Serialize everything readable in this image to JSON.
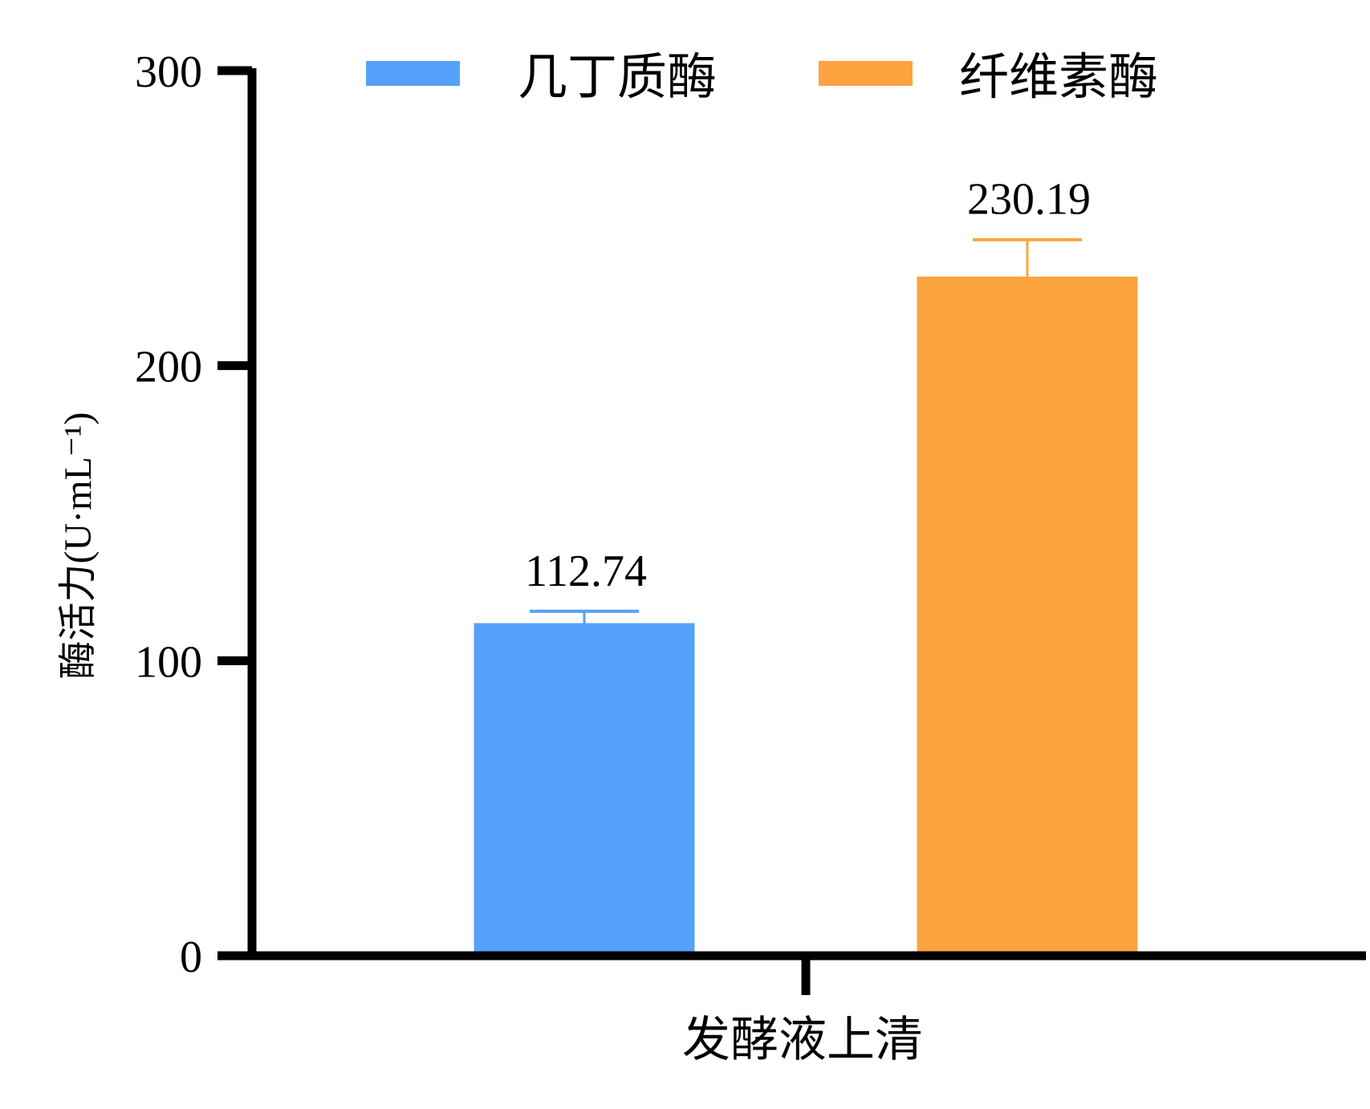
{
  "chart_data": {
    "type": "bar",
    "title": "",
    "xlabel": "",
    "ylabel": "酶活力(U·mL⁻¹)",
    "ylim": [
      0,
      300
    ],
    "yticks": [
      0,
      100,
      200,
      300
    ],
    "categories": [
      "发酵液上清"
    ],
    "legend_position": "top",
    "series": [
      {
        "name": "几丁质酶",
        "color": "#55a1fa",
        "values": [
          112.74
        ],
        "error": [
          4
        ],
        "data_label": "112.74"
      },
      {
        "name": "纤维素酶",
        "color": "#fca23f",
        "values": [
          230.19
        ],
        "error": [
          12.5
        ],
        "data_label": "230.19"
      }
    ],
    "grid": false
  }
}
